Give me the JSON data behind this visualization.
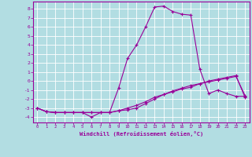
{
  "xlabel": "Windchill (Refroidissement éolien,°C)",
  "bg_color": "#b2dde2",
  "grid_color": "#ffffff",
  "line_color": "#990099",
  "x_ticks": [
    0,
    1,
    2,
    3,
    4,
    5,
    6,
    7,
    8,
    9,
    10,
    11,
    12,
    13,
    14,
    15,
    16,
    17,
    18,
    19,
    20,
    21,
    22,
    23
  ],
  "y_ticks": [
    -4,
    -3,
    -2,
    -1,
    0,
    1,
    2,
    3,
    4,
    5,
    6,
    7,
    8
  ],
  "xlim": [
    -0.5,
    23.5
  ],
  "ylim": [
    -4.6,
    8.8
  ],
  "series": [
    [
      -3.0,
      -3.4,
      -3.5,
      -3.5,
      -3.5,
      -3.5,
      -4.0,
      -3.5,
      -3.5,
      -0.8,
      2.5,
      4.0,
      6.0,
      8.2,
      8.3,
      7.7,
      7.4,
      7.3,
      1.3,
      -1.4,
      -1.0,
      -1.4,
      -1.7,
      -1.7
    ],
    [
      -3.0,
      -3.4,
      -3.5,
      -3.5,
      -3.5,
      -3.5,
      -3.5,
      -3.5,
      -3.5,
      -3.3,
      -3.2,
      -3.0,
      -2.5,
      -2.0,
      -1.5,
      -1.1,
      -0.8,
      -0.5,
      -0.3,
      -0.1,
      0.1,
      0.3,
      0.5,
      -1.6
    ],
    [
      -3.0,
      -3.4,
      -3.5,
      -3.5,
      -3.5,
      -3.5,
      -3.5,
      -3.5,
      -3.5,
      -3.3,
      -3.0,
      -2.7,
      -2.3,
      -1.8,
      -1.5,
      -1.2,
      -0.9,
      -0.7,
      -0.3,
      0.0,
      0.2,
      0.4,
      0.6,
      -1.8
    ]
  ]
}
